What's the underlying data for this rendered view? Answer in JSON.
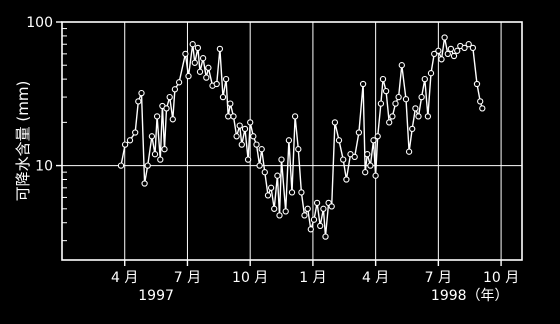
{
  "chart_data": {
    "type": "line",
    "ylabel": "可降水含量 (mm)",
    "y_scale": "log",
    "ylim": [
      2.2,
      100
    ],
    "yticks": [
      {
        "value": 10,
        "label": "10"
      },
      {
        "value": 100,
        "label": "100"
      }
    ],
    "x_unit": "month index (0 = 1 Jan 1997)",
    "xlim": [
      0.0,
      22.0
    ],
    "xticks": [
      {
        "value": 3,
        "label": "4 月"
      },
      {
        "value": 6,
        "label": "7 月"
      },
      {
        "value": 9,
        "label": "10 月"
      },
      {
        "value": 12,
        "label": "1 月"
      },
      {
        "value": 15,
        "label": "4 月"
      },
      {
        "value": 18,
        "label": "7 月"
      },
      {
        "value": 21,
        "label": "10 月"
      }
    ],
    "year_labels": [
      {
        "value": 4.5,
        "label": "1997"
      },
      {
        "value": 19.5,
        "label": "1998（年）"
      }
    ],
    "grid": true,
    "series": [
      {
        "style": "line with hollow circle markers",
        "points": [
          [
            2.82,
            10.0
          ],
          [
            3.02,
            14.0
          ],
          [
            3.25,
            15.0
          ],
          [
            3.5,
            17.0
          ],
          [
            3.65,
            28.0
          ],
          [
            3.8,
            32.0
          ],
          [
            3.95,
            7.5
          ],
          [
            4.1,
            10.0
          ],
          [
            4.3,
            16.0
          ],
          [
            4.45,
            12.0
          ],
          [
            4.55,
            22.0
          ],
          [
            4.7,
            11.0
          ],
          [
            4.8,
            26.0
          ],
          [
            4.9,
            13.0
          ],
          [
            5.0,
            25.0
          ],
          [
            5.15,
            30.0
          ],
          [
            5.3,
            21.0
          ],
          [
            5.4,
            34.0
          ],
          [
            5.6,
            38.0
          ],
          [
            5.9,
            60.0
          ],
          [
            6.05,
            42.0
          ],
          [
            6.25,
            70.0
          ],
          [
            6.35,
            52.0
          ],
          [
            6.5,
            66.0
          ],
          [
            6.6,
            45.0
          ],
          [
            6.75,
            56.0
          ],
          [
            6.9,
            41.0
          ],
          [
            7.0,
            48.0
          ],
          [
            7.2,
            36.0
          ],
          [
            7.4,
            37.0
          ],
          [
            7.55,
            65.0
          ],
          [
            7.7,
            30.0
          ],
          [
            7.85,
            40.0
          ],
          [
            7.95,
            22.0
          ],
          [
            8.05,
            27.0
          ],
          [
            8.2,
            22.0
          ],
          [
            8.35,
            16.0
          ],
          [
            8.5,
            19.0
          ],
          [
            8.6,
            14.0
          ],
          [
            8.75,
            18.0
          ],
          [
            8.9,
            11.0
          ],
          [
            9.0,
            20.0
          ],
          [
            9.15,
            16.0
          ],
          [
            9.3,
            14.0
          ],
          [
            9.45,
            10.0
          ],
          [
            9.55,
            13.0
          ],
          [
            9.7,
            9.0
          ],
          [
            9.85,
            6.2
          ],
          [
            10.0,
            7.0
          ],
          [
            10.15,
            5.0
          ],
          [
            10.3,
            8.5
          ],
          [
            10.4,
            4.5
          ],
          [
            10.5,
            11.0
          ],
          [
            10.7,
            4.8
          ],
          [
            10.85,
            15.0
          ],
          [
            11.0,
            6.5
          ],
          [
            11.15,
            22.0
          ],
          [
            11.3,
            13.0
          ],
          [
            11.45,
            6.5
          ],
          [
            11.6,
            4.5
          ],
          [
            11.75,
            5.0
          ],
          [
            11.9,
            3.6
          ],
          [
            12.05,
            4.2
          ],
          [
            12.2,
            5.5
          ],
          [
            12.35,
            3.8
          ],
          [
            12.5,
            5.0
          ],
          [
            12.6,
            3.2
          ],
          [
            12.75,
            5.5
          ],
          [
            12.9,
            5.2
          ],
          [
            13.05,
            20.0
          ],
          [
            13.25,
            15.0
          ],
          [
            13.45,
            11.0
          ],
          [
            13.6,
            8.0
          ],
          [
            13.8,
            12.0
          ],
          [
            14.0,
            11.5
          ],
          [
            14.2,
            17.0
          ],
          [
            14.4,
            37.0
          ],
          [
            14.5,
            9.0
          ],
          [
            14.6,
            12.0
          ],
          [
            14.75,
            10.0
          ],
          [
            14.9,
            15.0
          ],
          [
            15.0,
            8.5
          ],
          [
            15.1,
            16.0
          ],
          [
            15.25,
            27.0
          ],
          [
            15.35,
            40.0
          ],
          [
            15.5,
            33.0
          ],
          [
            15.65,
            20.0
          ],
          [
            15.8,
            22.0
          ],
          [
            15.95,
            27.0
          ],
          [
            16.1,
            30.0
          ],
          [
            16.25,
            50.0
          ],
          [
            16.45,
            29.0
          ],
          [
            16.6,
            12.5
          ],
          [
            16.75,
            18.0
          ],
          [
            16.9,
            25.0
          ],
          [
            17.05,
            22.0
          ],
          [
            17.2,
            30.0
          ],
          [
            17.35,
            40.0
          ],
          [
            17.5,
            22.0
          ],
          [
            17.65,
            44.0
          ],
          [
            17.8,
            60.0
          ],
          [
            18.0,
            63.0
          ],
          [
            18.15,
            55.0
          ],
          [
            18.3,
            78.0
          ],
          [
            18.45,
            60.0
          ],
          [
            18.6,
            65.0
          ],
          [
            18.75,
            58.0
          ],
          [
            18.9,
            63.0
          ],
          [
            19.05,
            68.0
          ],
          [
            19.25,
            66.0
          ],
          [
            19.45,
            70.0
          ],
          [
            19.65,
            66.0
          ],
          [
            19.85,
            37.0
          ],
          [
            20.0,
            28.0
          ],
          [
            20.1,
            25.0
          ]
        ]
      }
    ]
  }
}
